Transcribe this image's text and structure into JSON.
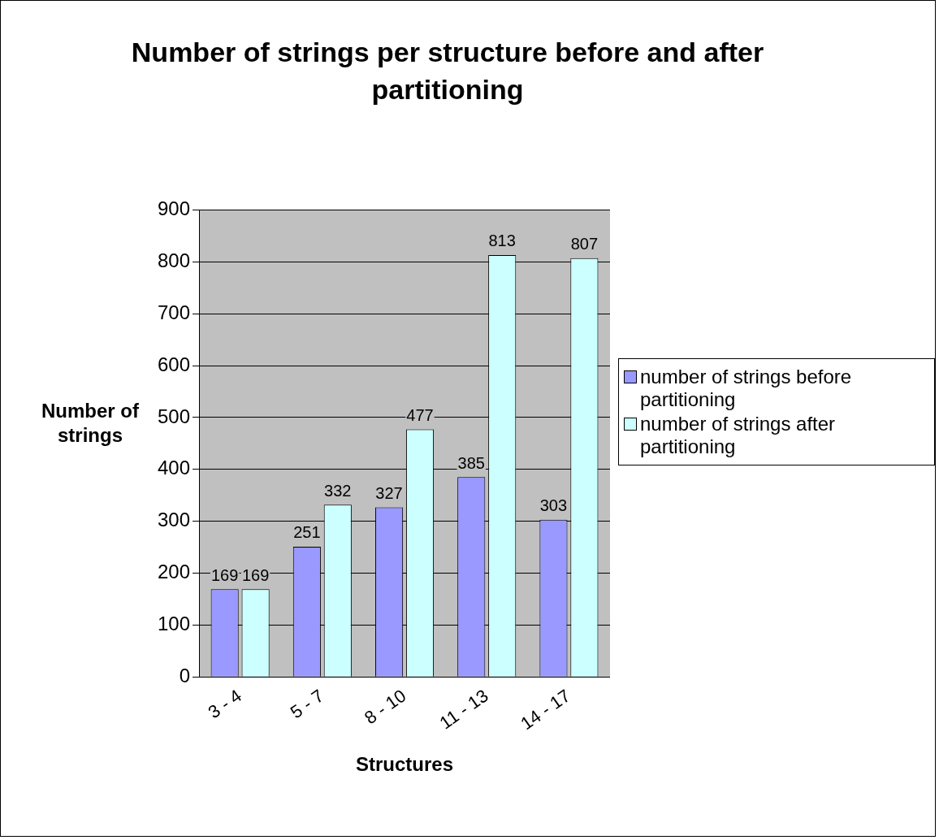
{
  "chart_data": {
    "type": "bar",
    "title": "Number of strings per structure before and after partitioning",
    "xlabel": "Structures",
    "ylabel": "Number of strings",
    "categories": [
      "3 - 4",
      "5 - 7",
      "8 - 10",
      "11 - 13",
      "14 - 17"
    ],
    "series": [
      {
        "name": "number of strings before partitioning",
        "color": "#9999ff",
        "values": [
          169,
          251,
          327,
          385,
          303
        ]
      },
      {
        "name": "number of strings after partitioning",
        "color": "#ccffff",
        "values": [
          169,
          332,
          477,
          813,
          807
        ]
      }
    ],
    "ylim": [
      0,
      900
    ],
    "yticks": [
      0,
      100,
      200,
      300,
      400,
      500,
      600,
      700,
      800,
      900
    ],
    "grid": "y",
    "legend": "right",
    "data_labels": true
  }
}
